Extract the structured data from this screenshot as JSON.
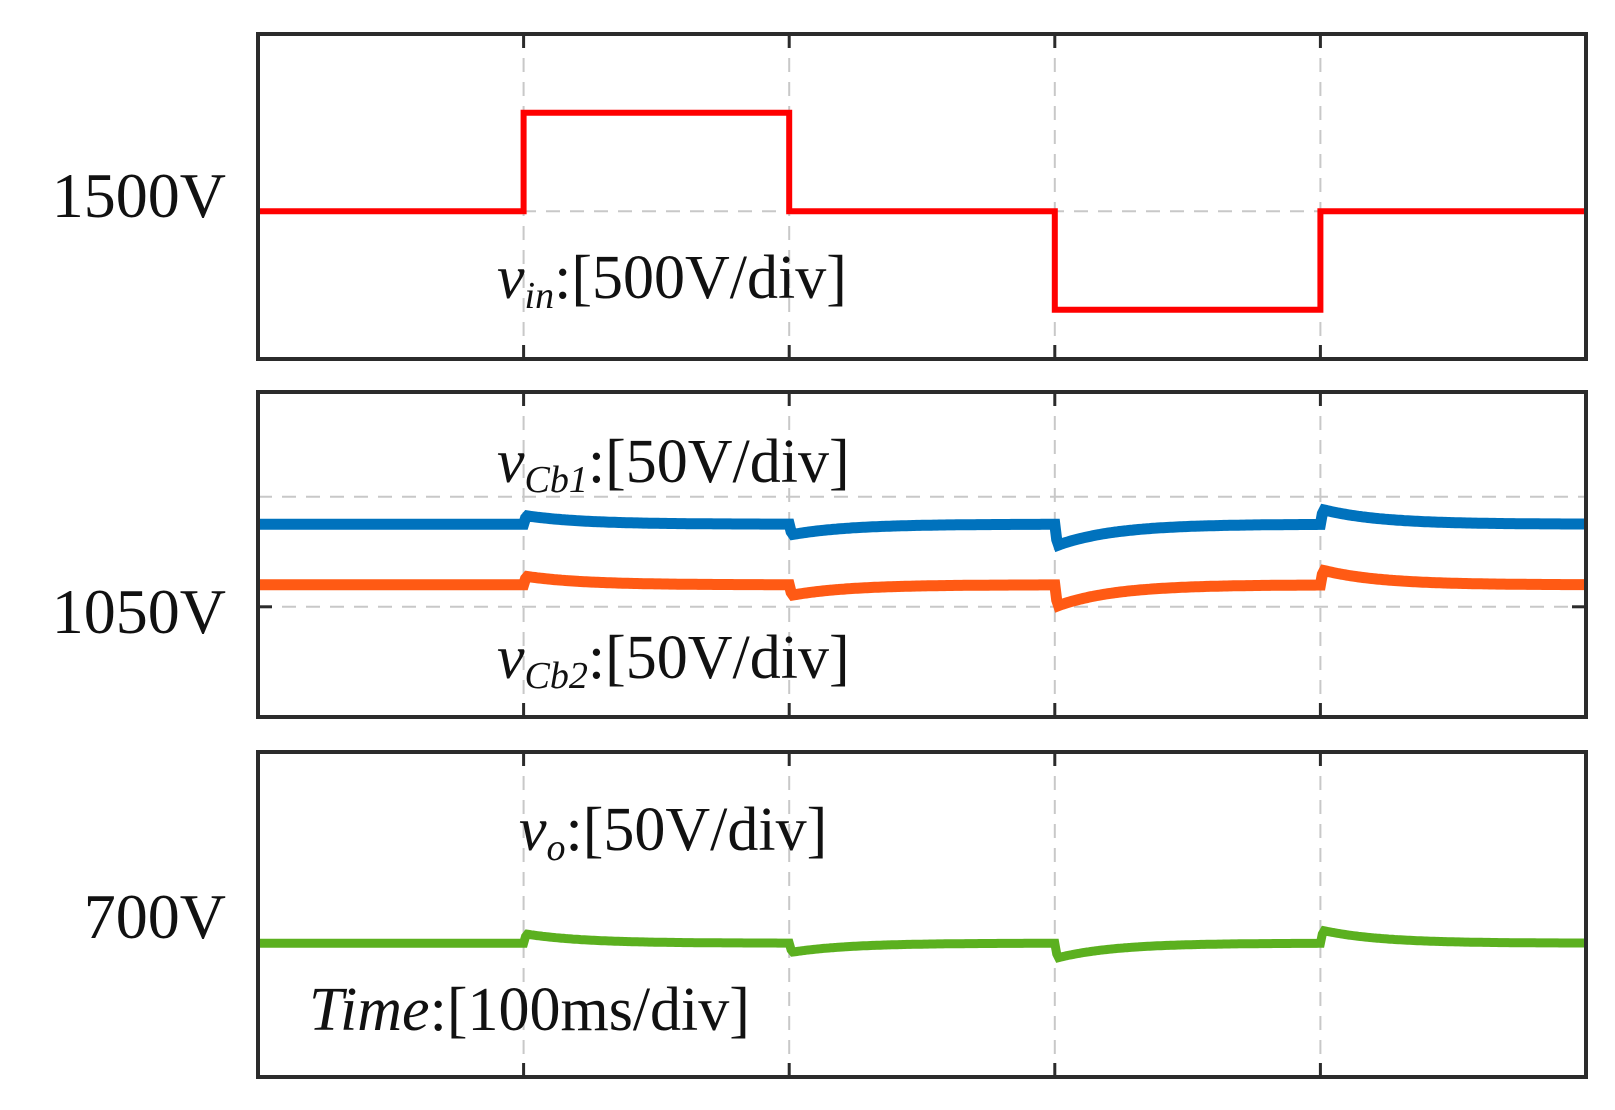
{
  "chart_data": {
    "type": "line",
    "title": "",
    "time_label": "Time",
    "time_scale": ":[100ms/div]",
    "x_divisions": 5,
    "x_unit": "div",
    "panels": [
      {
        "id": "vin",
        "y_label": "1500V",
        "y_ref": 1500,
        "ylim": [
          750,
          2400
        ],
        "grid_y": [
          1500
        ],
        "series": [
          {
            "name": "v_in",
            "symbol": "v",
            "sub": "in",
            "scale": ":[500V/div]",
            "color": "#ff0000",
            "x": [
              0,
              1,
              1,
              2,
              2,
              3,
              3,
              4,
              4,
              5
            ],
            "y": [
              1500,
              1500,
              2000,
              2000,
              1500,
              1500,
              1000,
              1000,
              1500,
              1500
            ],
            "step": true
          }
        ]
      },
      {
        "id": "vcb",
        "y_label": "1050V",
        "y_ref": 1050,
        "ylim": [
          950,
          1245
        ],
        "grid_y": [
          1050,
          1150
        ],
        "series": [
          {
            "name": "v_Cb1",
            "symbol": "v",
            "sub": "Cb1",
            "scale": ":[50V/div]",
            "color": "#0072bd",
            "base": 1125,
            "events": [
              {
                "t": 1,
                "jump": 8
              },
              {
                "t": 2,
                "jump": -10
              },
              {
                "t": 3,
                "jump": -20
              },
              {
                "t": 4,
                "jump": 14
              }
            ]
          },
          {
            "name": "v_Cb2",
            "symbol": "v",
            "sub": "Cb2",
            "scale": ":[50V/div]",
            "color": "#ff5a14",
            "base": 1070,
            "events": [
              {
                "t": 1,
                "jump": 8
              },
              {
                "t": 2,
                "jump": -10
              },
              {
                "t": 3,
                "jump": -20
              },
              {
                "t": 4,
                "jump": 14
              }
            ]
          }
        ]
      },
      {
        "id": "vo",
        "y_label": "700V",
        "y_ref": 700,
        "ylim": [
          560,
          900
        ],
        "grid_y": [],
        "series": [
          {
            "name": "v_o",
            "symbol": "v",
            "sub": "o",
            "scale": ":[50V/div]",
            "color": "#5bb01f",
            "base": 700,
            "events": [
              {
                "t": 1,
                "jump": 10
              },
              {
                "t": 2,
                "jump": -10
              },
              {
                "t": 3,
                "jump": -16
              },
              {
                "t": 4,
                "jump": 14
              }
            ]
          }
        ]
      }
    ]
  }
}
